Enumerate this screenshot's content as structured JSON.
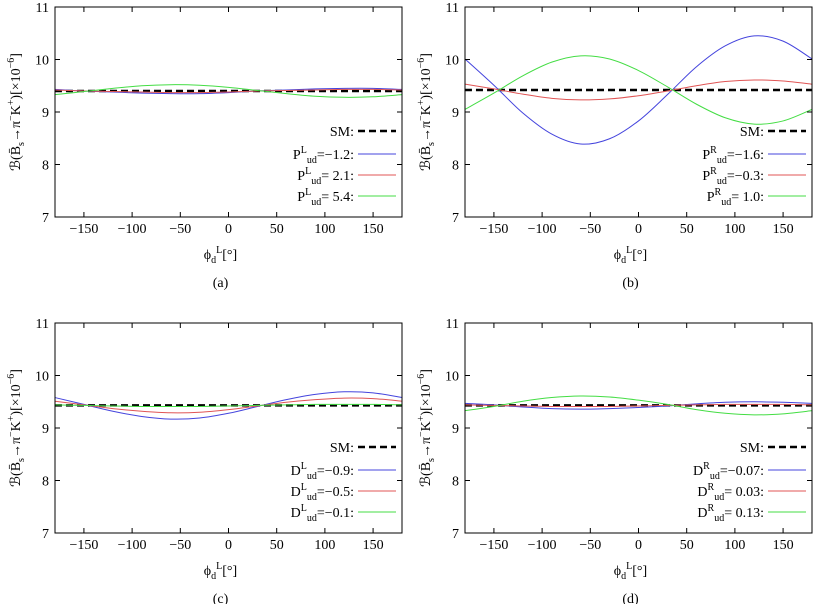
{
  "chart_data": [
    {
      "type": "line",
      "caption": "(a)",
      "xlabel": "ϕ_{d}^{L}[°]",
      "ylabel": "ℬ(B̄_{s}→π^{−}K^{+})[×10^{−6}]",
      "x": [
        -180,
        -150,
        -120,
        -90,
        -60,
        -30,
        0,
        30,
        60,
        90,
        120,
        150,
        180
      ],
      "xlim": [
        -180,
        180
      ],
      "ylim": [
        7,
        11
      ],
      "xticks": [
        {
          "value": -150,
          "label": "−150"
        },
        {
          "value": -100,
          "label": "−100"
        },
        {
          "value": -50,
          "label": "−50"
        },
        0,
        50,
        100,
        150
      ],
      "yticks": [
        7,
        8,
        9,
        10,
        11
      ],
      "legend": "lower right",
      "series": [
        {
          "name": "SM:",
          "color": "#000000",
          "style": "dashed",
          "values": [
            9.4,
            9.4,
            9.4,
            9.4,
            9.4,
            9.4,
            9.4,
            9.4,
            9.4,
            9.4,
            9.4,
            9.4,
            9.4
          ]
        },
        {
          "name": "P^{L}_{ud}=−1.2:",
          "color": "#4444dd",
          "style": "solid",
          "values": [
            9.43,
            9.4,
            9.38,
            9.36,
            9.35,
            9.35,
            9.37,
            9.4,
            9.42,
            9.44,
            9.45,
            9.45,
            9.43
          ]
        },
        {
          "name": "P^{L}_{ud}= 2.1:",
          "color": "#e05555",
          "style": "solid",
          "values": [
            9.42,
            9.4,
            9.39,
            9.38,
            9.37,
            9.37,
            9.38,
            9.4,
            9.41,
            9.42,
            9.43,
            9.43,
            9.42
          ]
        },
        {
          "name": "P^{L}_{ud}= 5.4:",
          "color": "#44dd44",
          "style": "solid",
          "values": [
            9.33,
            9.39,
            9.45,
            9.5,
            9.52,
            9.51,
            9.47,
            9.41,
            9.35,
            9.3,
            9.28,
            9.29,
            9.33
          ]
        }
      ]
    },
    {
      "type": "line",
      "caption": "(b)",
      "xlabel": "ϕ_{d}^{L}[°]",
      "ylabel": "ℬ(B̄_{s}→π^{−}K^{+})[×10^{−6}]",
      "x": [
        -180,
        -150,
        -120,
        -90,
        -60,
        -30,
        0,
        30,
        60,
        90,
        120,
        150,
        180
      ],
      "xlim": [
        -180,
        180
      ],
      "ylim": [
        7,
        11
      ],
      "xticks": [
        {
          "value": -150,
          "label": "−150"
        },
        {
          "value": -100,
          "label": "−100"
        },
        {
          "value": -50,
          "label": "−50"
        },
        0,
        50,
        100,
        150
      ],
      "yticks": [
        7,
        8,
        9,
        10,
        11
      ],
      "legend": "lower right",
      "series": [
        {
          "name": "SM:",
          "color": "#000000",
          "style": "dashed",
          "values": [
            9.42,
            9.42,
            9.42,
            9.42,
            9.42,
            9.42,
            9.42,
            9.42,
            9.42,
            9.42,
            9.42,
            9.42,
            9.42
          ]
        },
        {
          "name": "P^{R}_{ud}=−1.6:",
          "color": "#4444dd",
          "style": "solid",
          "values": [
            10.01,
            9.51,
            8.98,
            8.58,
            8.39,
            8.49,
            8.83,
            9.33,
            9.86,
            10.26,
            10.45,
            10.35,
            10.01
          ]
        },
        {
          "name": "P^{R}_{ud}=−0.3:",
          "color": "#e05555",
          "style": "solid",
          "values": [
            9.53,
            9.44,
            9.34,
            9.26,
            9.23,
            9.25,
            9.31,
            9.4,
            9.5,
            9.58,
            9.61,
            9.59,
            9.53
          ]
        },
        {
          "name": "P^{R}_{ud}= 1.0:",
          "color": "#44dd44",
          "style": "solid",
          "values": [
            9.05,
            9.36,
            9.69,
            9.95,
            10.07,
            10.01,
            9.79,
            9.48,
            9.15,
            8.89,
            8.77,
            8.83,
            9.05
          ]
        }
      ]
    },
    {
      "type": "line",
      "caption": "(c)",
      "xlabel": "ϕ_{d}^{L}[°]",
      "ylabel": "ℬ(B̄_{s}→π^{−}K^{+})[×10^{−6}]",
      "x": [
        -180,
        -150,
        -120,
        -90,
        -60,
        -30,
        0,
        30,
        60,
        90,
        120,
        150,
        180
      ],
      "xlim": [
        -180,
        180
      ],
      "ylim": [
        7,
        11
      ],
      "xticks": [
        {
          "value": -150,
          "label": "−150"
        },
        {
          "value": -100,
          "label": "−100"
        },
        {
          "value": -50,
          "label": "−50"
        },
        0,
        50,
        100,
        150
      ],
      "yticks": [
        7,
        8,
        9,
        10,
        11
      ],
      "legend": "lower right",
      "series": [
        {
          "name": "SM:",
          "color": "#000000",
          "style": "dashed",
          "values": [
            9.43,
            9.43,
            9.43,
            9.43,
            9.43,
            9.43,
            9.43,
            9.43,
            9.43,
            9.43,
            9.43,
            9.43,
            9.43
          ]
        },
        {
          "name": "D^{L}_{ud}=−0.9:",
          "color": "#4444dd",
          "style": "solid",
          "values": [
            9.58,
            9.45,
            9.32,
            9.22,
            9.17,
            9.19,
            9.28,
            9.41,
            9.54,
            9.64,
            9.69,
            9.67,
            9.58
          ]
        },
        {
          "name": "D^{L}_{ud}=−0.5:",
          "color": "#e05555",
          "style": "solid",
          "values": [
            9.51,
            9.44,
            9.37,
            9.32,
            9.29,
            9.3,
            9.35,
            9.42,
            9.49,
            9.54,
            9.57,
            9.56,
            9.51
          ]
        },
        {
          "name": "D^{L}_{ud}=−0.1:",
          "color": "#44dd44",
          "style": "solid",
          "values": [
            9.44,
            9.43,
            9.42,
            9.41,
            9.41,
            9.41,
            9.42,
            9.43,
            9.44,
            9.45,
            9.45,
            9.45,
            9.44
          ]
        }
      ]
    },
    {
      "type": "line",
      "caption": "(d)",
      "xlabel": "ϕ_{d}^{L}[°]",
      "ylabel": "ℬ(B̄_{s}→π^{−}K^{+})[×10^{−6}]",
      "x": [
        -180,
        -150,
        -120,
        -90,
        -60,
        -30,
        0,
        30,
        60,
        90,
        120,
        150,
        180
      ],
      "xlim": [
        -180,
        180
      ],
      "ylim": [
        7,
        11
      ],
      "xticks": [
        {
          "value": -150,
          "label": "−150"
        },
        {
          "value": -100,
          "label": "−100"
        },
        {
          "value": -50,
          "label": "−50"
        },
        0,
        50,
        100,
        150
      ],
      "yticks": [
        7,
        8,
        9,
        10,
        11
      ],
      "legend": "lower right",
      "series": [
        {
          "name": "SM:",
          "color": "#000000",
          "style": "dashed",
          "values": [
            9.43,
            9.43,
            9.43,
            9.43,
            9.43,
            9.43,
            9.43,
            9.43,
            9.43,
            9.43,
            9.43,
            9.43,
            9.43
          ]
        },
        {
          "name": "D^{R}_{ud}=−0.07:",
          "color": "#4444dd",
          "style": "solid",
          "values": [
            9.47,
            9.44,
            9.4,
            9.37,
            9.36,
            9.37,
            9.39,
            9.42,
            9.46,
            9.49,
            9.5,
            9.49,
            9.47
          ]
        },
        {
          "name": "D^{R}_{ud}= 0.03:",
          "color": "#e05555",
          "style": "solid",
          "values": [
            9.44,
            9.43,
            9.42,
            9.41,
            9.41,
            9.41,
            9.42,
            9.43,
            9.44,
            9.45,
            9.45,
            9.45,
            9.44
          ]
        },
        {
          "name": "D^{R}_{ud}= 0.13:",
          "color": "#44dd44",
          "style": "solid",
          "values": [
            9.33,
            9.41,
            9.51,
            9.58,
            9.61,
            9.59,
            9.53,
            9.45,
            9.35,
            9.28,
            9.25,
            9.27,
            9.33
          ]
        }
      ]
    }
  ]
}
